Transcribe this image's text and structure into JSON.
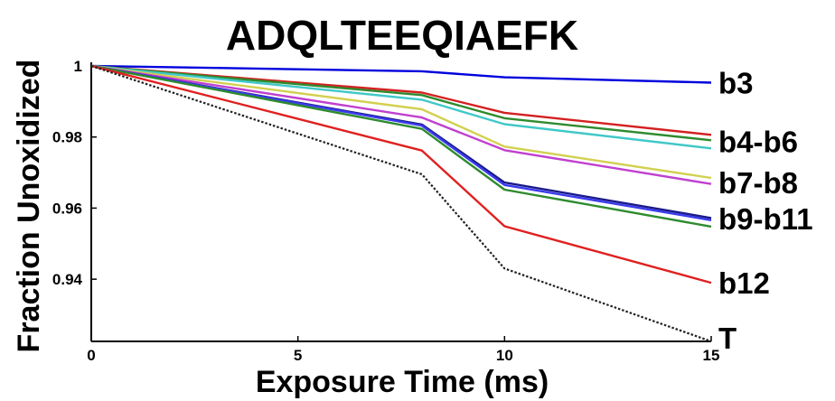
{
  "chart_data": {
    "type": "line",
    "title": "ADQLTEEQIAEFK",
    "xlabel": "Exposure Time (ms)",
    "ylabel": "Fraction Unoxidized",
    "x": [
      0,
      8,
      10,
      15
    ],
    "xlim": [
      0,
      15
    ],
    "ylim": [
      0.9225,
      1.0
    ],
    "xticks": [
      0,
      5,
      10,
      15
    ],
    "yticks": [
      0.94,
      0.96,
      0.98,
      1.0
    ],
    "xtick_labels": [
      "0",
      "5",
      "10",
      "15"
    ],
    "ytick_labels": [
      "0.94",
      "0.96",
      "0.98",
      "1"
    ],
    "grid": false,
    "series": [
      {
        "color": "#0000dd",
        "dash": false,
        "values": [
          1.0,
          0.9985,
          0.9968,
          0.9953
        ]
      },
      {
        "color": "#d42020",
        "dash": false,
        "values": [
          1.0,
          0.9925,
          0.9868,
          0.9806
        ]
      },
      {
        "color": "#2e8b2e",
        "dash": false,
        "values": [
          1.0,
          0.9918,
          0.9853,
          0.9791
        ]
      },
      {
        "color": "#40c8c8",
        "dash": false,
        "values": [
          1.0,
          0.9905,
          0.9836,
          0.9768
        ]
      },
      {
        "color": "#d2d050",
        "dash": false,
        "values": [
          1.0,
          0.9878,
          0.9773,
          0.9685
        ]
      },
      {
        "color": "#c040d0",
        "dash": false,
        "values": [
          1.0,
          0.9855,
          0.9763,
          0.9668
        ]
      },
      {
        "color": "#1a1a88",
        "dash": false,
        "values": [
          1.0,
          0.9835,
          0.9672,
          0.9572
        ]
      },
      {
        "color": "#3a3aee",
        "dash": false,
        "values": [
          1.0,
          0.9832,
          0.9665,
          0.9566
        ]
      },
      {
        "color": "#2e8b2e",
        "dash": false,
        "values": [
          1.0,
          0.9823,
          0.9652,
          0.9548
        ]
      },
      {
        "color": "#e02020",
        "dash": false,
        "values": [
          1.0,
          0.9762,
          0.9549,
          0.939
        ]
      },
      {
        "color": "#222222",
        "dash": true,
        "values": [
          1.0,
          0.9695,
          0.943,
          0.9225
        ]
      }
    ],
    "annotations": [
      {
        "text": "b3",
        "y": 0.9953
      },
      {
        "text": "b4-b6",
        "y": 0.9788
      },
      {
        "text": "b7-b8",
        "y": 0.9672
      },
      {
        "text": "b9-b11",
        "y": 0.957
      },
      {
        "text": "b12",
        "y": 0.939
      },
      {
        "text": "T",
        "y": 0.9235
      }
    ]
  }
}
